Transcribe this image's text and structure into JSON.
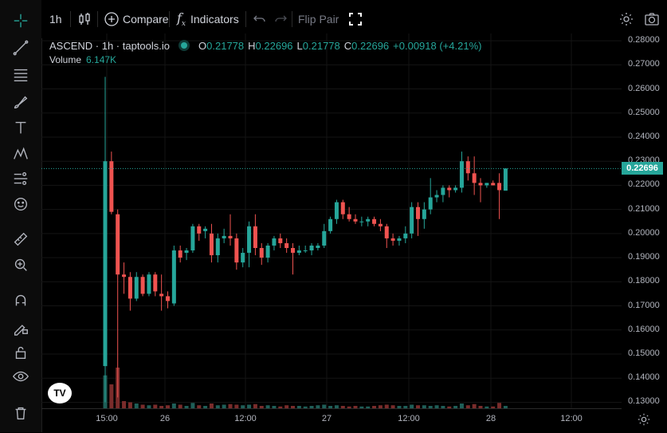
{
  "topbar": {
    "interval": "1h",
    "compare_label": "Compare",
    "indicators_label": "Indicators",
    "flip_pair_label": "Flip Pair"
  },
  "legend": {
    "symbol": "ASCEND · 1h · taptools.io",
    "open_label": "O",
    "open": "0.21778",
    "high_label": "H",
    "high": "0.22696",
    "low_label": "L",
    "low": "0.21778",
    "close_label": "C",
    "close": "0.22696",
    "change": "+0.00918 (+4.21%)",
    "volume_label": "Volume",
    "volume": "6.147K"
  },
  "price_axis": [
    "0.28000",
    "0.27000",
    "0.26000",
    "0.25000",
    "0.24000",
    "0.23000",
    "0.22000",
    "0.21000",
    "0.20000",
    "0.19000",
    "0.18000",
    "0.17000",
    "0.16000",
    "0.15000",
    "0.14000",
    "0.13000"
  ],
  "last_price": "0.22696",
  "time_axis": [
    "15:00",
    "26",
    "12:00",
    "27",
    "12:00",
    "28",
    "12:00"
  ],
  "colors": {
    "up": "#26a69a",
    "down": "#ef5350",
    "up_vol": "#1f5f58",
    "down_vol": "#7a2c2b",
    "grid": "#141414",
    "bg": "#000000"
  },
  "logo": "TV",
  "chart_data": {
    "type": "candlestick",
    "ylim": [
      0.1275,
      0.283
    ],
    "candles": [
      {
        "o": 0.145,
        "h": 0.265,
        "l": 0.13,
        "c": 0.23,
        "v": 0.55
      },
      {
        "o": 0.23,
        "h": 0.234,
        "l": 0.208,
        "c": 0.209,
        "v": 0.4
      },
      {
        "o": 0.208,
        "h": 0.21,
        "l": 0.132,
        "c": 0.183,
        "v": 0.68
      },
      {
        "o": 0.183,
        "h": 0.188,
        "l": 0.175,
        "c": 0.182,
        "v": 0.12
      },
      {
        "o": 0.182,
        "h": 0.184,
        "l": 0.168,
        "c": 0.173,
        "v": 0.1
      },
      {
        "o": 0.173,
        "h": 0.184,
        "l": 0.172,
        "c": 0.182,
        "v": 0.08
      },
      {
        "o": 0.182,
        "h": 0.183,
        "l": 0.174,
        "c": 0.175,
        "v": 0.06
      },
      {
        "o": 0.175,
        "h": 0.184,
        "l": 0.174,
        "c": 0.183,
        "v": 0.05
      },
      {
        "o": 0.183,
        "h": 0.184,
        "l": 0.174,
        "c": 0.176,
        "v": 0.06
      },
      {
        "o": 0.175,
        "h": 0.183,
        "l": 0.168,
        "c": 0.174,
        "v": 0.04
      },
      {
        "o": 0.174,
        "h": 0.176,
        "l": 0.169,
        "c": 0.172,
        "v": 0.05
      },
      {
        "o": 0.171,
        "h": 0.195,
        "l": 0.17,
        "c": 0.193,
        "v": 0.08
      },
      {
        "o": 0.193,
        "h": 0.195,
        "l": 0.188,
        "c": 0.19,
        "v": 0.06
      },
      {
        "o": 0.192,
        "h": 0.194,
        "l": 0.189,
        "c": 0.193,
        "v": 0.04
      },
      {
        "o": 0.193,
        "h": 0.204,
        "l": 0.192,
        "c": 0.203,
        "v": 0.09
      },
      {
        "o": 0.203,
        "h": 0.204,
        "l": 0.197,
        "c": 0.2,
        "v": 0.05
      },
      {
        "o": 0.201,
        "h": 0.203,
        "l": 0.198,
        "c": 0.202,
        "v": 0.04
      },
      {
        "o": 0.2,
        "h": 0.204,
        "l": 0.188,
        "c": 0.191,
        "v": 0.08
      },
      {
        "o": 0.191,
        "h": 0.2,
        "l": 0.188,
        "c": 0.198,
        "v": 0.05
      },
      {
        "o": 0.198,
        "h": 0.202,
        "l": 0.196,
        "c": 0.199,
        "v": 0.06
      },
      {
        "o": 0.199,
        "h": 0.208,
        "l": 0.195,
        "c": 0.198,
        "v": 0.07
      },
      {
        "o": 0.198,
        "h": 0.2,
        "l": 0.185,
        "c": 0.188,
        "v": 0.06
      },
      {
        "o": 0.188,
        "h": 0.194,
        "l": 0.186,
        "c": 0.192,
        "v": 0.05
      },
      {
        "o": 0.192,
        "h": 0.205,
        "l": 0.186,
        "c": 0.203,
        "v": 0.06
      },
      {
        "o": 0.203,
        "h": 0.208,
        "l": 0.191,
        "c": 0.194,
        "v": 0.07
      },
      {
        "o": 0.194,
        "h": 0.196,
        "l": 0.187,
        "c": 0.19,
        "v": 0.04
      },
      {
        "o": 0.19,
        "h": 0.196,
        "l": 0.188,
        "c": 0.195,
        "v": 0.05
      },
      {
        "o": 0.195,
        "h": 0.199,
        "l": 0.193,
        "c": 0.198,
        "v": 0.04
      },
      {
        "o": 0.198,
        "h": 0.2,
        "l": 0.194,
        "c": 0.196,
        "v": 0.03
      },
      {
        "o": 0.196,
        "h": 0.198,
        "l": 0.192,
        "c": 0.194,
        "v": 0.05
      },
      {
        "o": 0.194,
        "h": 0.196,
        "l": 0.183,
        "c": 0.192,
        "v": 0.04
      },
      {
        "o": 0.192,
        "h": 0.195,
        "l": 0.191,
        "c": 0.193,
        "v": 0.04
      },
      {
        "o": 0.193,
        "h": 0.195,
        "l": 0.192,
        "c": 0.193,
        "v": 0.03
      },
      {
        "o": 0.193,
        "h": 0.196,
        "l": 0.191,
        "c": 0.195,
        "v": 0.04
      },
      {
        "o": 0.194,
        "h": 0.196,
        "l": 0.193,
        "c": 0.195,
        "v": 0.05
      },
      {
        "o": 0.195,
        "h": 0.204,
        "l": 0.194,
        "c": 0.201,
        "v": 0.06
      },
      {
        "o": 0.201,
        "h": 0.207,
        "l": 0.2,
        "c": 0.206,
        "v": 0.04
      },
      {
        "o": 0.206,
        "h": 0.214,
        "l": 0.204,
        "c": 0.213,
        "v": 0.05
      },
      {
        "o": 0.213,
        "h": 0.214,
        "l": 0.206,
        "c": 0.208,
        "v": 0.04
      },
      {
        "o": 0.208,
        "h": 0.211,
        "l": 0.205,
        "c": 0.206,
        "v": 0.03
      },
      {
        "o": 0.206,
        "h": 0.208,
        "l": 0.204,
        "c": 0.205,
        "v": 0.04
      },
      {
        "o": 0.205,
        "h": 0.207,
        "l": 0.203,
        "c": 0.205,
        "v": 0.03
      },
      {
        "o": 0.205,
        "h": 0.207,
        "l": 0.203,
        "c": 0.206,
        "v": 0.03
      },
      {
        "o": 0.206,
        "h": 0.207,
        "l": 0.203,
        "c": 0.204,
        "v": 0.04
      },
      {
        "o": 0.204,
        "h": 0.206,
        "l": 0.201,
        "c": 0.203,
        "v": 0.05
      },
      {
        "o": 0.203,
        "h": 0.204,
        "l": 0.194,
        "c": 0.198,
        "v": 0.06
      },
      {
        "o": 0.198,
        "h": 0.2,
        "l": 0.195,
        "c": 0.197,
        "v": 0.05
      },
      {
        "o": 0.197,
        "h": 0.199,
        "l": 0.195,
        "c": 0.198,
        "v": 0.04
      },
      {
        "o": 0.198,
        "h": 0.203,
        "l": 0.196,
        "c": 0.2,
        "v": 0.04
      },
      {
        "o": 0.2,
        "h": 0.213,
        "l": 0.198,
        "c": 0.211,
        "v": 0.06
      },
      {
        "o": 0.211,
        "h": 0.213,
        "l": 0.199,
        "c": 0.206,
        "v": 0.05
      },
      {
        "o": 0.206,
        "h": 0.213,
        "l": 0.202,
        "c": 0.21,
        "v": 0.05
      },
      {
        "o": 0.21,
        "h": 0.223,
        "l": 0.208,
        "c": 0.215,
        "v": 0.04
      },
      {
        "o": 0.215,
        "h": 0.218,
        "l": 0.213,
        "c": 0.216,
        "v": 0.05
      },
      {
        "o": 0.216,
        "h": 0.22,
        "l": 0.213,
        "c": 0.219,
        "v": 0.04
      },
      {
        "o": 0.219,
        "h": 0.22,
        "l": 0.215,
        "c": 0.218,
        "v": 0.03
      },
      {
        "o": 0.218,
        "h": 0.22,
        "l": 0.217,
        "c": 0.219,
        "v": 0.04
      },
      {
        "o": 0.219,
        "h": 0.234,
        "l": 0.217,
        "c": 0.23,
        "v": 0.08
      },
      {
        "o": 0.23,
        "h": 0.232,
        "l": 0.222,
        "c": 0.225,
        "v": 0.05
      },
      {
        "o": 0.225,
        "h": 0.232,
        "l": 0.216,
        "c": 0.221,
        "v": 0.07
      },
      {
        "o": 0.221,
        "h": 0.223,
        "l": 0.213,
        "c": 0.22,
        "v": 0.04
      },
      {
        "o": 0.22,
        "h": 0.221,
        "l": 0.219,
        "c": 0.221,
        "v": 0.03
      },
      {
        "o": 0.221,
        "h": 0.222,
        "l": 0.22,
        "c": 0.22,
        "v": 0.03
      },
      {
        "o": 0.221,
        "h": 0.225,
        "l": 0.206,
        "c": 0.218,
        "v": 0.09
      },
      {
        "o": 0.2178,
        "h": 0.227,
        "l": 0.2178,
        "c": 0.227,
        "v": 0.04
      }
    ]
  }
}
